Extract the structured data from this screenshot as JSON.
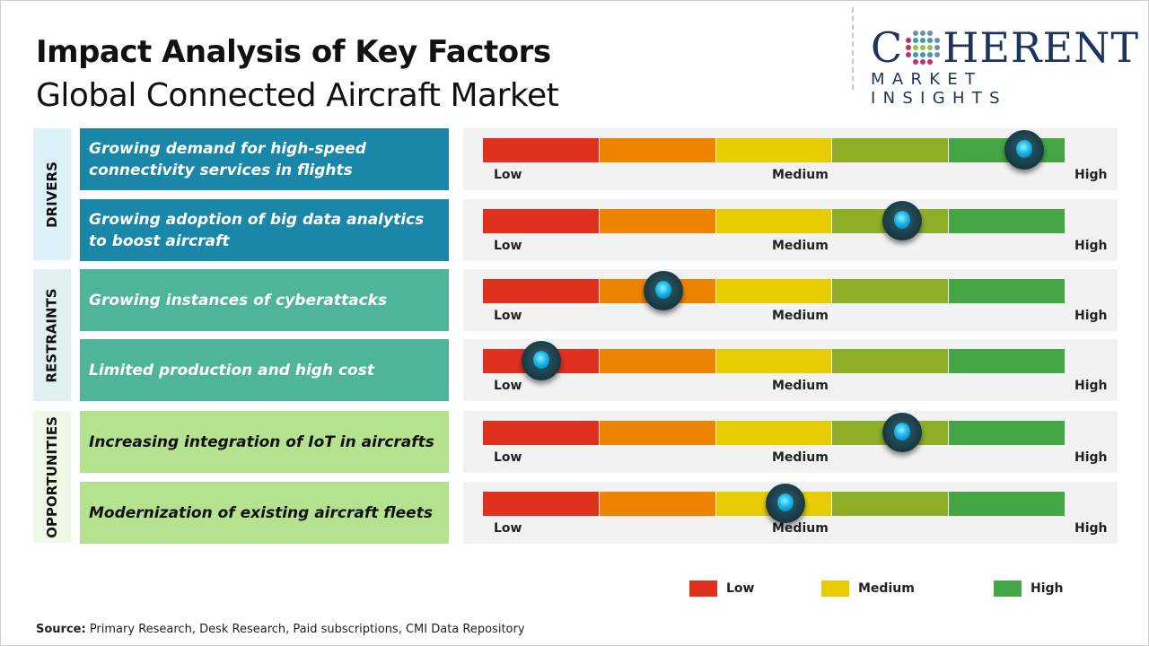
{
  "header": {
    "title": "Impact Analysis of Key Factors",
    "subtitle": "Global Connected Aircraft Market"
  },
  "logo": {
    "line1_left": "C",
    "line1_right": "HERENT",
    "line2": "MARKET INSIGHTS"
  },
  "colors": {
    "low": "#e0301e",
    "low_medium": "#ee8300",
    "medium": "#e6cc00",
    "medium_high": "#8fae28",
    "high": "#44a644",
    "drivers": "#1a86a8",
    "restraints": "#4fb59a",
    "opportunities": "#b5e28e",
    "knob": "#17b6ea"
  },
  "categories": [
    {
      "label": "DRIVERS",
      "bg": "#dff1f8"
    },
    {
      "label": "RESTRAINTS",
      "bg": "#e0f1f0"
    },
    {
      "label": "OPPORTUNITIES",
      "bg": "#eef8e4"
    }
  ],
  "scale": {
    "low": "Low",
    "medium": "Medium",
    "high": "High"
  },
  "factors": [
    {
      "category": "DRIVERS",
      "text": "Growing demand for high-speed connectivity services in flights",
      "impact": 0.93
    },
    {
      "category": "DRIVERS",
      "text": "Growing adoption of big data analytics to boost aircraft",
      "impact": 0.72
    },
    {
      "category": "RESTRAINTS",
      "text": "Growing instances of cyberattacks",
      "impact": 0.31
    },
    {
      "category": "RESTRAINTS",
      "text": "Limited production and high cost",
      "impact": 0.1
    },
    {
      "category": "OPPORTUNITIES",
      "text": "Increasing integration of IoT in aircrafts",
      "impact": 0.72
    },
    {
      "category": "OPPORTUNITIES",
      "text": "Modernization of existing aircraft fleets",
      "impact": 0.52
    }
  ],
  "legend": [
    {
      "label": "Low",
      "color": "#e0301e"
    },
    {
      "label": "Medium",
      "color": "#e6cc00"
    },
    {
      "label": "High",
      "color": "#44a644"
    }
  ],
  "source": {
    "label": "Source:",
    "text": " Primary Research, Desk Research, Paid subscriptions, CMI Data Repository"
  }
}
